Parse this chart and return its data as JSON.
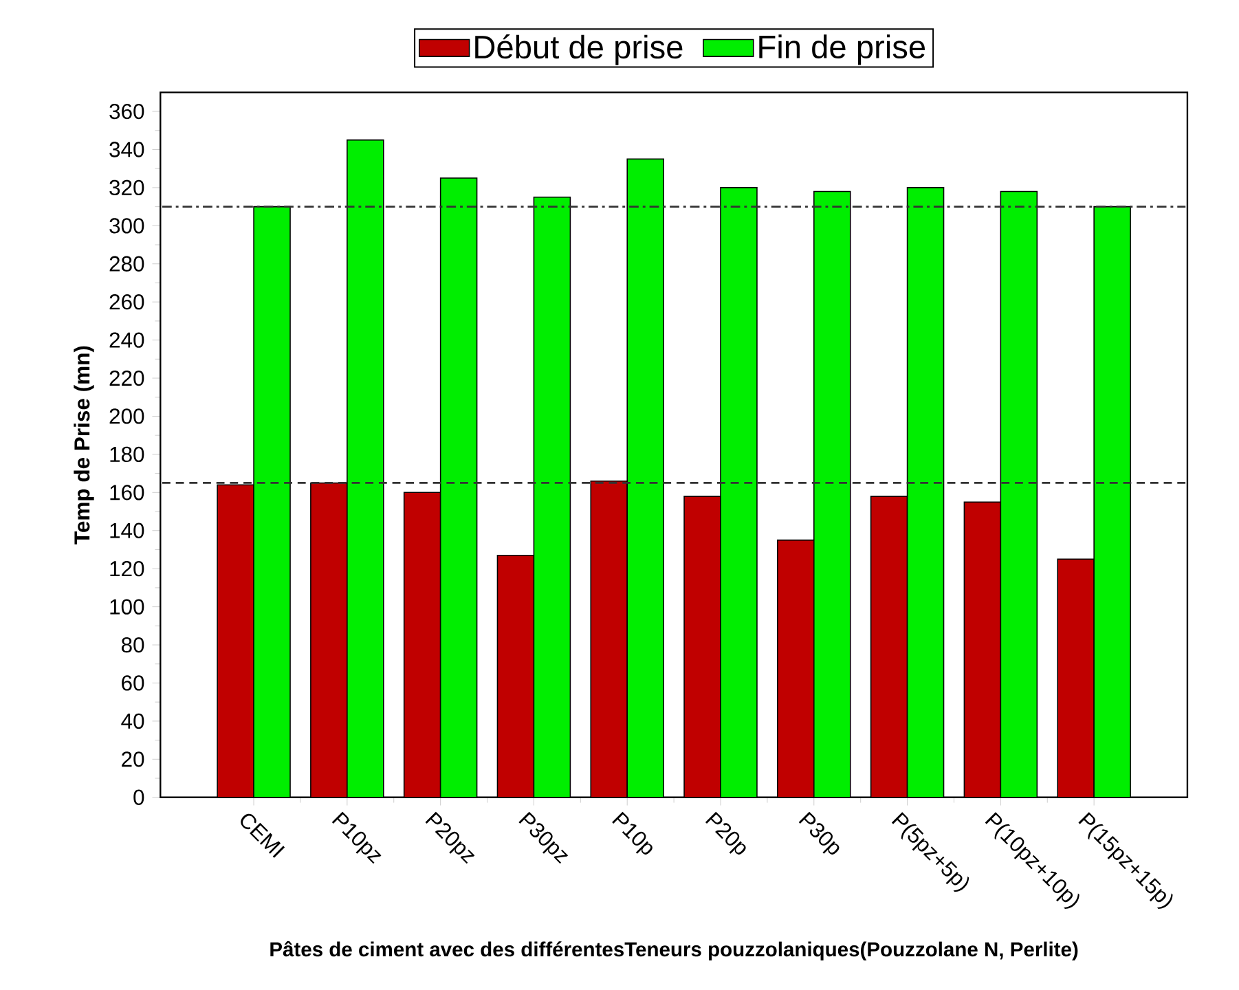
{
  "chart_data": {
    "type": "bar",
    "xlabel": "Pâtes de ciment avec des différentesTeneurs pouzzolaniques(Pouzzolane N, Perlite)",
    "ylabel": "Temp de Prise (mn)",
    "categories": [
      "CEMI",
      "P10pz",
      "P20pz",
      "P30pz",
      "P10p",
      "P20p",
      "P30p",
      "P(5pz+5p)",
      "P(10pz+10p)",
      "P(15pz+15p)"
    ],
    "series": [
      {
        "name": "Début de prise",
        "color": "#c00000",
        "values": [
          164,
          165,
          160,
          127,
          166,
          158,
          135,
          158,
          155,
          125
        ]
      },
      {
        "name": "Fin de prise",
        "color": "#00ee00",
        "values": [
          310,
          345,
          325,
          315,
          335,
          320,
          318,
          320,
          318,
          310
        ]
      }
    ],
    "ylim": [
      0,
      370
    ],
    "yticks": [
      0,
      20,
      40,
      60,
      80,
      100,
      120,
      140,
      160,
      180,
      200,
      220,
      240,
      260,
      280,
      300,
      320,
      340,
      360
    ],
    "ref_lines": [
      {
        "axis": "y",
        "value": 310,
        "line_style": "dashdot",
        "color": "#333333"
      },
      {
        "axis": "y",
        "value": 165,
        "line_style": "dashed",
        "color": "#333333"
      }
    ],
    "legend": "top",
    "grid": false
  }
}
